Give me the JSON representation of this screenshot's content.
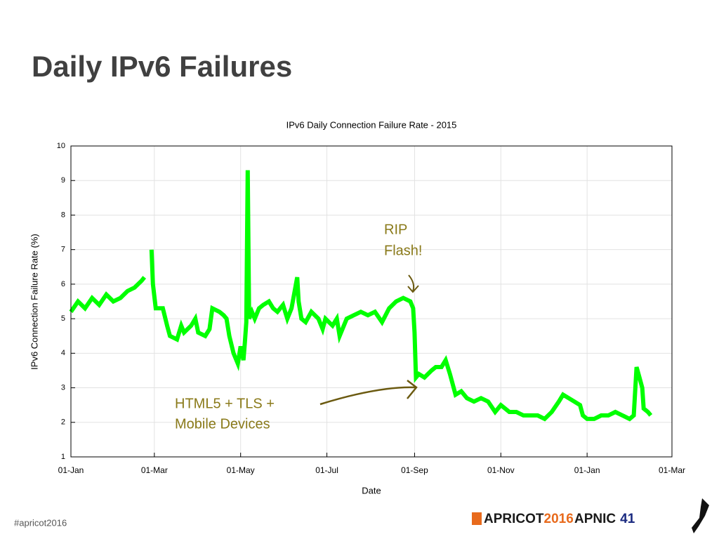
{
  "slide_title": "Daily IPv6 Failures",
  "footer_hashtag": "#apricot2016",
  "logos": {
    "apricot": "APRICOT",
    "apricot_year": "2016",
    "apnic": "APNIC",
    "apnic_number": "41"
  },
  "chart_data": {
    "type": "line",
    "title": "IPv6 Daily Connection Failure Rate - 2015",
    "x_label": "Date",
    "y_label": "IPv6 Connection Failure Rate (%)",
    "color": "#00ff00",
    "grid": true,
    "xlim": [
      0,
      425
    ],
    "xticks": [
      {
        "value": 0,
        "label": "01-Jan"
      },
      {
        "value": 59,
        "label": "01-Mar"
      },
      {
        "value": 120,
        "label": "01-May"
      },
      {
        "value": 181,
        "label": "01-Jul"
      },
      {
        "value": 243,
        "label": "01-Sep"
      },
      {
        "value": 304,
        "label": "01-Nov"
      },
      {
        "value": 365,
        "label": "01-Jan"
      },
      {
        "value": 425,
        "label": "01-Mar"
      }
    ],
    "ylim": [
      1,
      10
    ],
    "yticks": [
      1,
      2,
      3,
      4,
      5,
      6,
      7,
      8,
      9,
      10
    ],
    "x": [
      0,
      5,
      10,
      15,
      20,
      25,
      30,
      35,
      40,
      45,
      50,
      52,
      54,
      57,
      58,
      60,
      65,
      68,
      70,
      75,
      78,
      80,
      85,
      88,
      90,
      95,
      98,
      100,
      105,
      108,
      110,
      112,
      115,
      118,
      120,
      122,
      123,
      124,
      125,
      126,
      128,
      130,
      133,
      136,
      140,
      143,
      146,
      150,
      153,
      156,
      160,
      161,
      163,
      166,
      170,
      175,
      178,
      180,
      185,
      188,
      190,
      195,
      200,
      205,
      210,
      215,
      220,
      225,
      230,
      235,
      240,
      242,
      243,
      244,
      246,
      250,
      255,
      258,
      262,
      265,
      268,
      272,
      276,
      280,
      285,
      290,
      295,
      300,
      304,
      310,
      315,
      320,
      325,
      330,
      335,
      340,
      345,
      348,
      352,
      356,
      360,
      362,
      365,
      370,
      375,
      380,
      385,
      390,
      395,
      398,
      400,
      402,
      404,
      405,
      408,
      410
    ],
    "values": [
      5.2,
      5.5,
      5.3,
      5.6,
      5.4,
      5.7,
      5.5,
      5.6,
      5.8,
      5.9,
      6.1,
      6.2,
      null,
      7.0,
      6.0,
      5.3,
      5.3,
      4.8,
      4.5,
      4.4,
      4.8,
      4.6,
      4.8,
      5.0,
      4.6,
      4.5,
      4.7,
      5.3,
      5.2,
      5.1,
      5.0,
      4.5,
      4.0,
      3.7,
      4.2,
      3.8,
      4.3,
      4.9,
      9.3,
      5.0,
      5.2,
      5.0,
      5.3,
      5.4,
      5.5,
      5.3,
      5.2,
      5.4,
      5.0,
      5.3,
      6.2,
      5.5,
      5.0,
      4.9,
      5.2,
      5.0,
      4.7,
      5.0,
      4.8,
      5.0,
      4.5,
      5.0,
      5.1,
      5.2,
      5.1,
      5.2,
      4.9,
      5.3,
      5.5,
      5.6,
      5.5,
      5.3,
      4.6,
      3.3,
      3.4,
      3.3,
      3.5,
      3.6,
      3.6,
      3.8,
      3.4,
      2.8,
      2.9,
      2.7,
      2.6,
      2.7,
      2.6,
      2.3,
      2.5,
      2.3,
      2.3,
      2.2,
      2.2,
      2.2,
      2.1,
      2.3,
      2.6,
      2.8,
      2.7,
      2.6,
      2.5,
      2.2,
      2.1,
      2.1,
      2.2,
      2.2,
      2.3,
      2.2,
      2.1,
      2.2,
      3.6,
      3.3,
      3.0,
      2.4,
      2.3,
      2.2
    ],
    "annotations": [
      [
        "RIP",
        "Flash!"
      ],
      [
        "HTML5 + TLS +",
        "Mobile Devices"
      ]
    ]
  }
}
